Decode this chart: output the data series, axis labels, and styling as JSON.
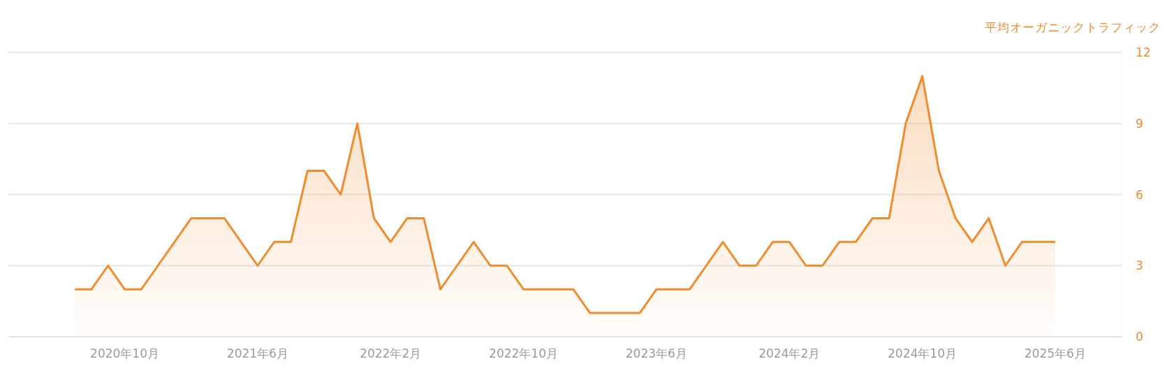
{
  "chart_data": {
    "type": "area",
    "ylabel": "平均オーガニックトラフィック",
    "x": [
      "2020-07",
      "2020-08",
      "2020-09",
      "2020-10",
      "2020-11",
      "2020-12",
      "2021-01",
      "2021-02",
      "2021-03",
      "2021-04",
      "2021-05",
      "2021-06",
      "2021-07",
      "2021-08",
      "2021-09",
      "2021-10",
      "2021-11",
      "2021-12",
      "2022-01",
      "2022-02",
      "2022-03",
      "2022-04",
      "2022-05",
      "2022-06",
      "2022-07",
      "2022-08",
      "2022-09",
      "2022-10",
      "2022-11",
      "2022-12",
      "2023-01",
      "2023-02",
      "2023-03",
      "2023-04",
      "2023-05",
      "2023-06",
      "2023-07",
      "2023-08",
      "2023-09",
      "2023-10",
      "2023-11",
      "2023-12",
      "2024-01",
      "2024-02",
      "2024-03",
      "2024-04",
      "2024-05",
      "2024-06",
      "2024-07",
      "2024-08",
      "2024-09",
      "2024-10",
      "2024-11",
      "2024-12",
      "2025-01",
      "2025-02",
      "2025-03",
      "2025-04",
      "2025-05",
      "2025-06"
    ],
    "series": [
      {
        "color": "#f08c2e",
        "values": [
          2,
          2,
          3,
          2,
          2,
          3,
          4,
          5,
          5,
          5,
          4,
          3,
          4,
          4,
          7,
          7,
          6,
          9,
          5,
          4,
          5,
          5,
          2,
          3,
          4,
          3,
          3,
          2,
          2,
          2,
          2,
          1,
          1,
          1,
          1,
          2,
          2,
          2,
          3,
          4,
          3,
          3,
          4,
          4,
          3,
          3,
          4,
          4,
          5,
          5,
          9,
          11,
          7,
          5,
          4,
          5,
          3,
          4,
          4,
          4
        ]
      }
    ],
    "xlim": [
      "2020-03",
      "2025-10"
    ],
    "xticks": [
      {
        "value": "2020-10",
        "label": "2020年10月"
      },
      {
        "value": "2021-06",
        "label": "2021年6月"
      },
      {
        "value": "2022-02",
        "label": "2022年2月"
      },
      {
        "value": "2022-10",
        "label": "2022年10月"
      },
      {
        "value": "2023-06",
        "label": "2023年6月"
      },
      {
        "value": "2024-02",
        "label": "2024年2月"
      },
      {
        "value": "2024-10",
        "label": "2024年10月"
      },
      {
        "value": "2025-06",
        "label": "2025年6月"
      }
    ],
    "ylim": [
      0,
      12
    ],
    "yticks": [
      0,
      3,
      6,
      9,
      12
    ],
    "grid": "y",
    "legend": false,
    "marker": "none",
    "line_style": "solid"
  }
}
